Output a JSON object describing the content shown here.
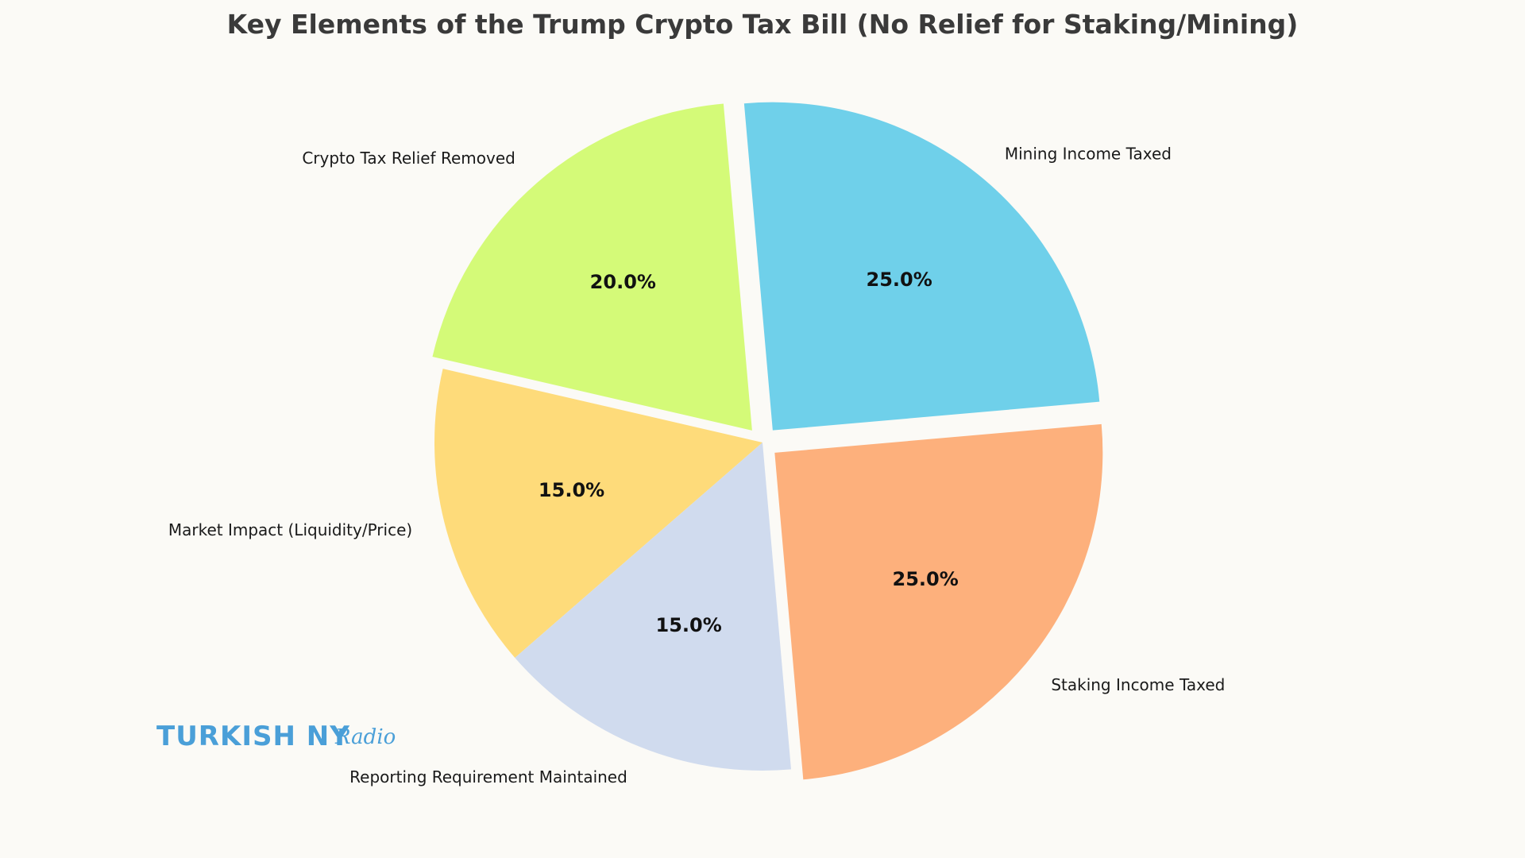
{
  "chart_data": {
    "type": "pie",
    "title": "Key Elements of the Trump Crypto Tax Bill (No Relief for Staking/Mining)",
    "start_angle_deg": 95,
    "direction": "counterclockwise",
    "slices": [
      {
        "label": "Crypto Tax Relief Removed",
        "value": 20,
        "pct_label": "20.0%",
        "color": "#d4fa78",
        "explode": true
      },
      {
        "label": "Market Impact (Liquidity/Price)",
        "value": 15,
        "pct_label": "15.0%",
        "color": "#fedb7a",
        "explode": false
      },
      {
        "label": "Reporting Requirement Maintained",
        "value": 15,
        "pct_label": "15.0%",
        "color": "#d0dbee",
        "explode": false
      },
      {
        "label": "Staking Income Taxed",
        "value": 25,
        "pct_label": "25.0%",
        "color": "#fdb07c",
        "explode": true
      },
      {
        "label": "Mining Income Taxed",
        "value": 25,
        "pct_label": "25.0%",
        "color": "#6fd0ea",
        "explode": true
      }
    ]
  },
  "watermark": {
    "brand": "TURKISH NY",
    "script": "Radio",
    "color": "#4a9fd8"
  }
}
